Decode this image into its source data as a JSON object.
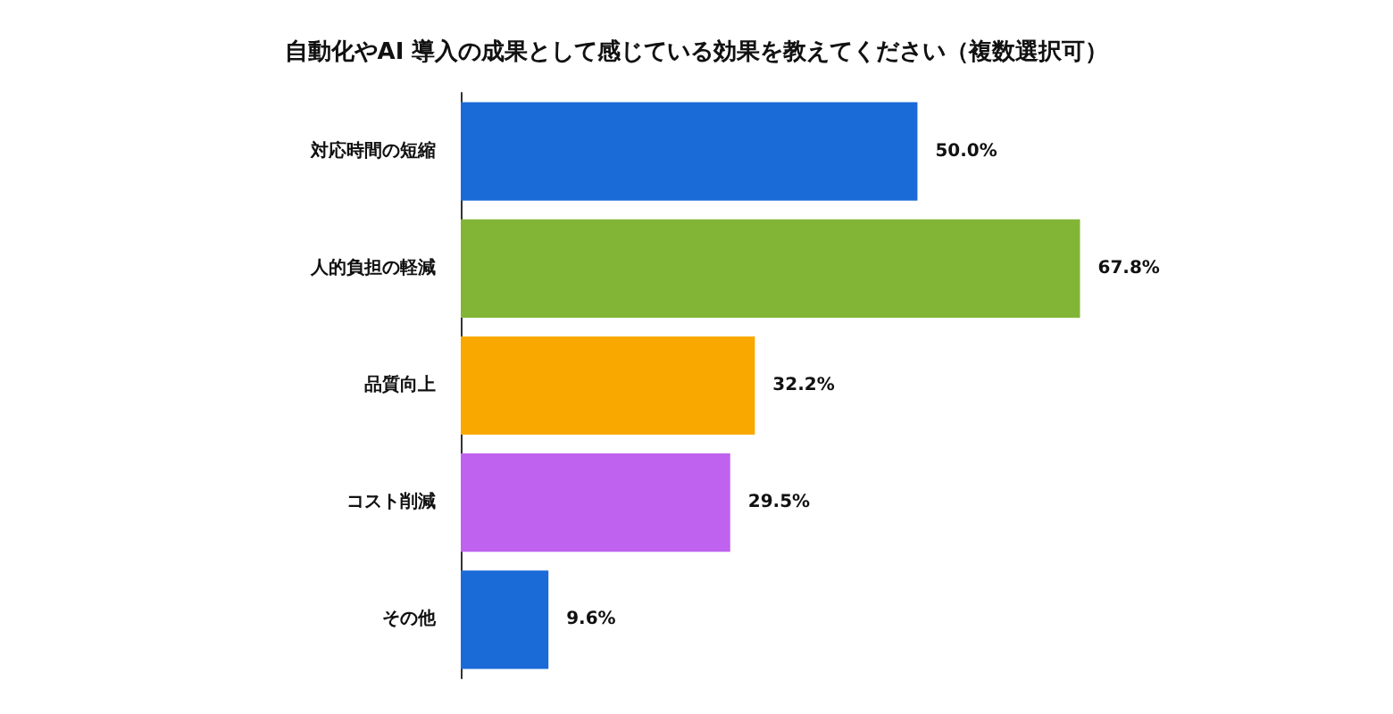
{
  "chart_data": {
    "type": "bar",
    "orientation": "horizontal",
    "title": "自動化やAI 導入の成果として感じている効果を教えてください（複数選択可）",
    "categories": [
      "対応時間の短縮",
      "人的負担の軽減",
      "品質向上",
      "コスト削減",
      "その他"
    ],
    "values": [
      50.0,
      67.8,
      32.2,
      29.5,
      9.6
    ],
    "colors": [
      "#1a6ad8",
      "#82b536",
      "#f9a800",
      "#bf62ef",
      "#1a6ad8"
    ],
    "value_labels": [
      "50.0%",
      "67.8%",
      "32.2%",
      "29.5%",
      "9.6%"
    ]
  }
}
